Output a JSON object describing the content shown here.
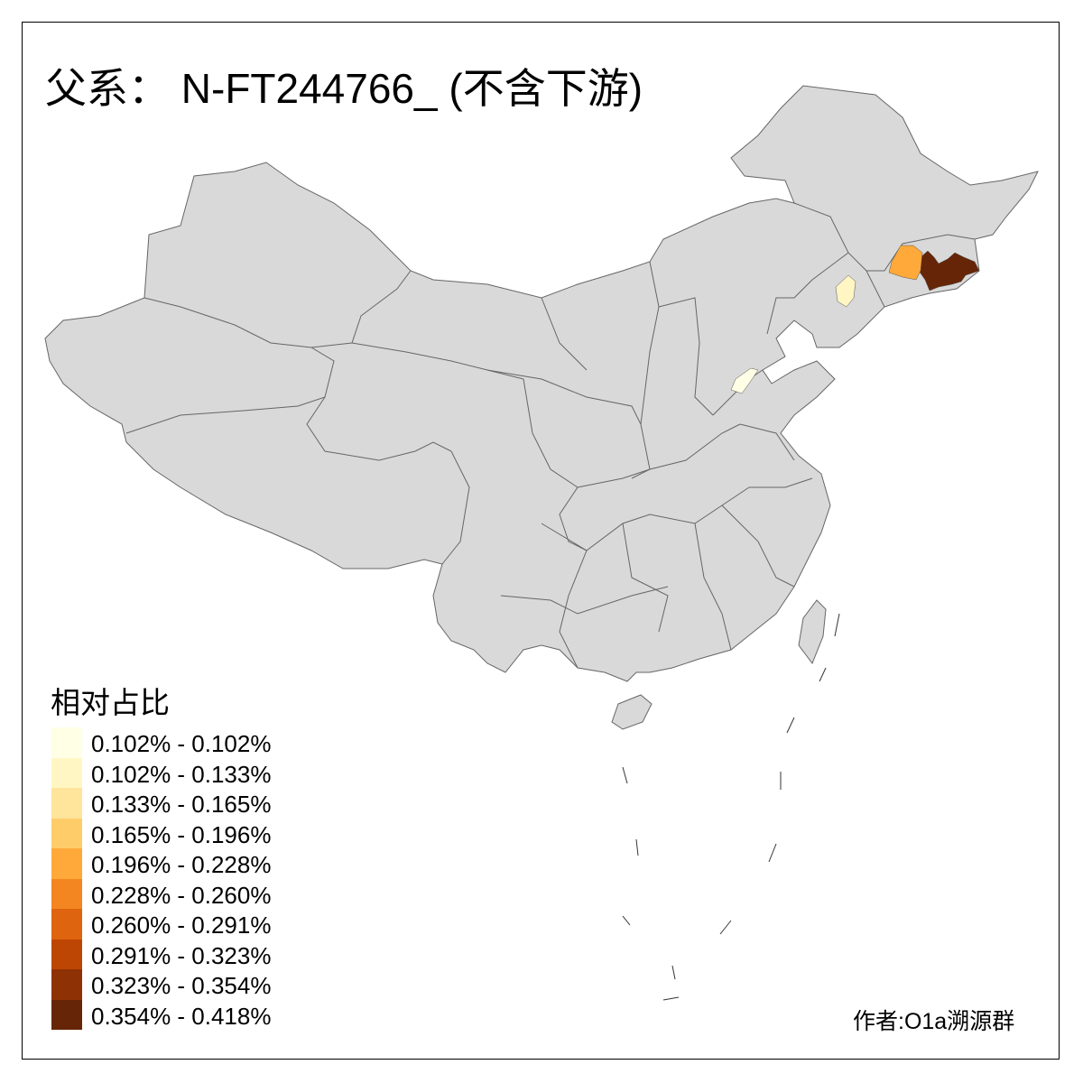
{
  "title": "父系： N-FT244766_ (不含下游)",
  "map": {
    "base_fill": "#d9d9d9",
    "border_color": "#666666",
    "highlighted_regions": [
      {
        "bin": 9,
        "fill": "#662506"
      },
      {
        "bin": 4,
        "fill": "#fea93a"
      },
      {
        "bin": 1,
        "fill": "#fff6c4"
      },
      {
        "bin": 0,
        "fill": "#ffffe5"
      }
    ]
  },
  "legend": {
    "title": "相对占比",
    "items": [
      {
        "label": "0.102% - 0.102%",
        "color": "#ffffe5"
      },
      {
        "label": "0.102% - 0.133%",
        "color": "#fff6c4"
      },
      {
        "label": "0.133% - 0.165%",
        "color": "#fee59b"
      },
      {
        "label": "0.165% - 0.196%",
        "color": "#fecd6a"
      },
      {
        "label": "0.196% - 0.228%",
        "color": "#fea93a"
      },
      {
        "label": "0.228% - 0.260%",
        "color": "#f38620"
      },
      {
        "label": "0.260% - 0.291%",
        "color": "#df640f"
      },
      {
        "label": "0.291% - 0.323%",
        "color": "#bd4604"
      },
      {
        "label": "0.323% - 0.354%",
        "color": "#8e3104"
      },
      {
        "label": "0.354% - 0.418%",
        "color": "#662506"
      }
    ]
  },
  "author": "作者:O1a溯源群"
}
